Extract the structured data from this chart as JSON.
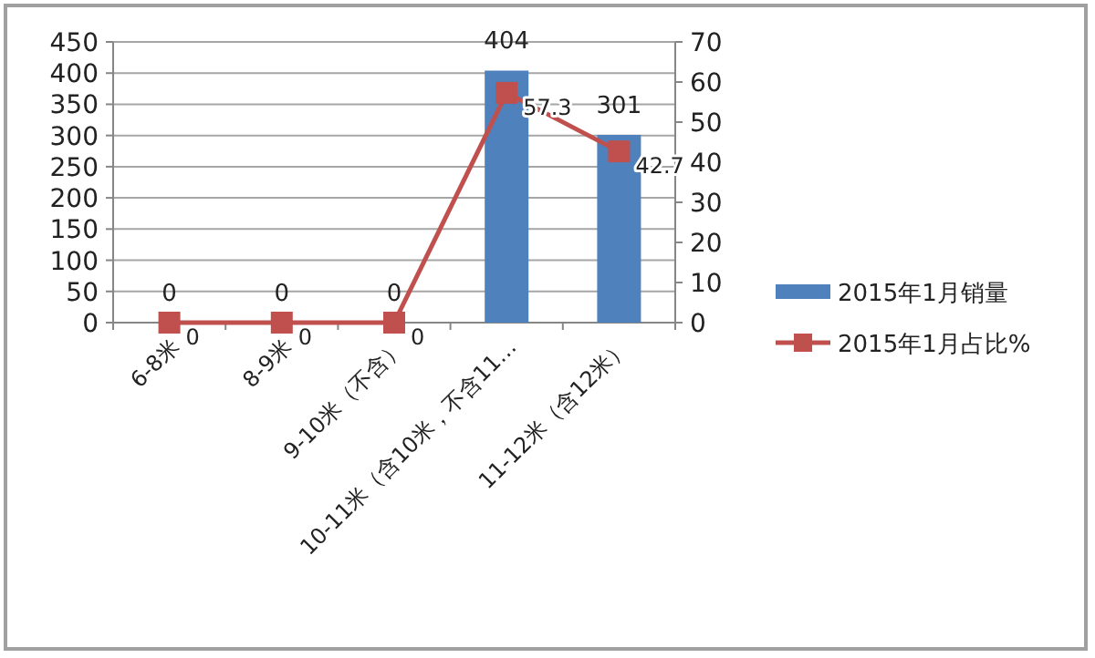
{
  "chart_data": {
    "type": "bar",
    "categories": [
      "6-8米",
      "8-9米",
      "9-10米（不含）",
      "10-11米（含10米，不含11…",
      "11-12米（含12米）"
    ],
    "series": [
      {
        "name": "2015年1月销量",
        "color": "#4f81bd",
        "values": [
          0,
          0,
          0,
          404,
          301
        ]
      },
      {
        "name": "2015年1月占比%",
        "type": "line",
        "axis": "y2",
        "color": "#c0504d",
        "marker": "square",
        "values": [
          0,
          0,
          0,
          57.3,
          42.7
        ]
      }
    ],
    "ylim": [
      0,
      450
    ],
    "yticks": [
      0,
      50,
      100,
      150,
      200,
      250,
      300,
      350,
      400,
      450
    ],
    "y2lim": [
      0,
      70
    ],
    "y2ticks": [
      0,
      10,
      20,
      30,
      40,
      50,
      60,
      70
    ],
    "grid": "y",
    "legend": "right",
    "data_labels": true
  }
}
